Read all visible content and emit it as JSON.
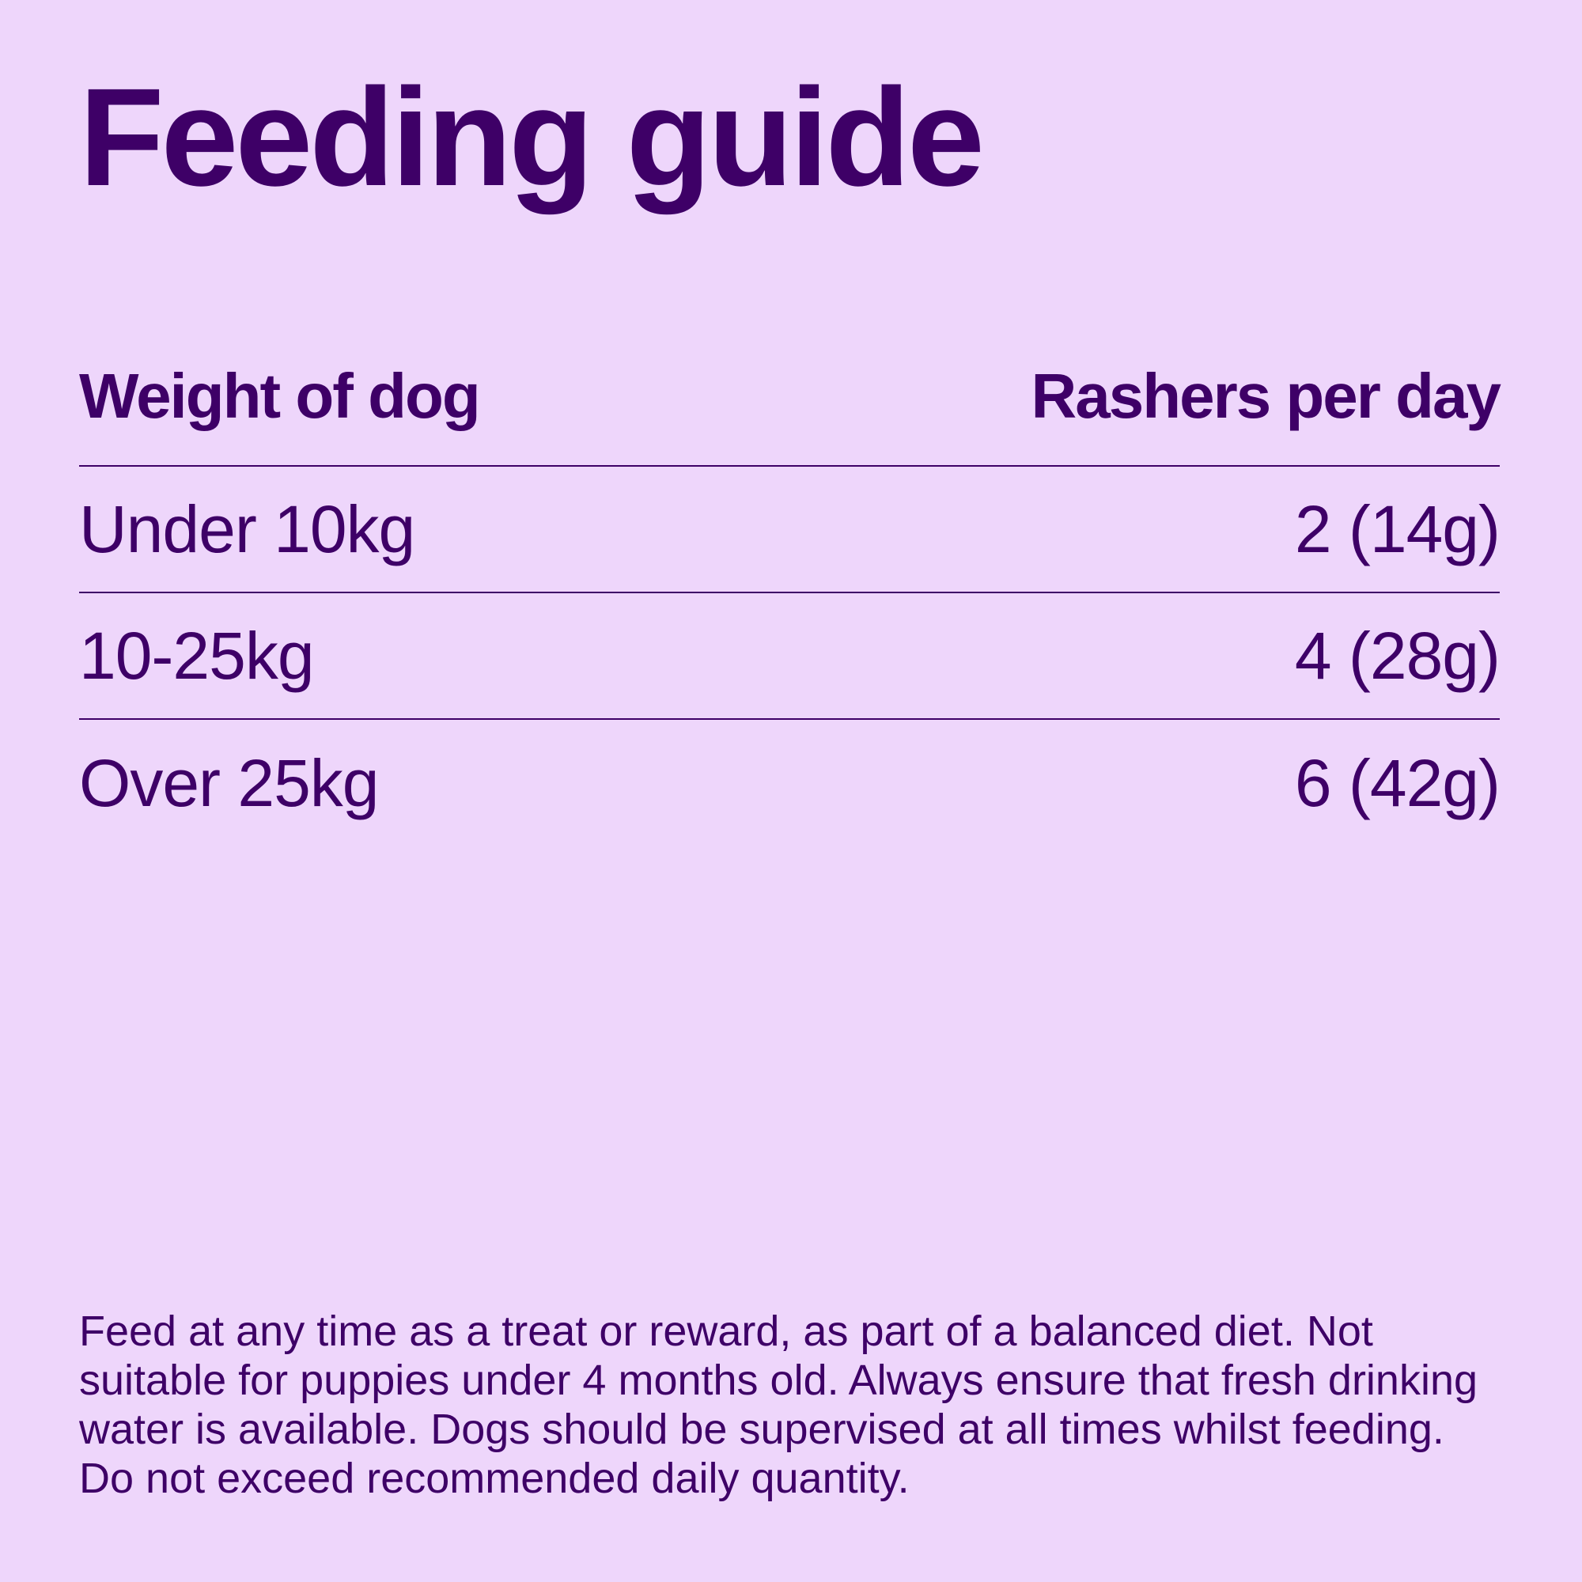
{
  "title": "Feeding guide",
  "table": {
    "headers": {
      "weight": "Weight of dog",
      "rashers": "Rashers per day"
    },
    "rows": [
      {
        "weight": "Under 10kg",
        "rashers": "2 (14g)"
      },
      {
        "weight": "10-25kg",
        "rashers": "4 (28g)"
      },
      {
        "weight": "Over 25kg",
        "rashers": "6 (42g)"
      }
    ]
  },
  "note": "Feed at any time as a treat or reward, as part of a balanced diet. Not suitable for puppies under 4 months old. Always ensure that fresh drinking water is available. Dogs should be supervised at all times whilst feeding. Do not exceed recommended daily quantity.",
  "colors": {
    "background": "#eed6fb",
    "text": "#3e0067"
  }
}
